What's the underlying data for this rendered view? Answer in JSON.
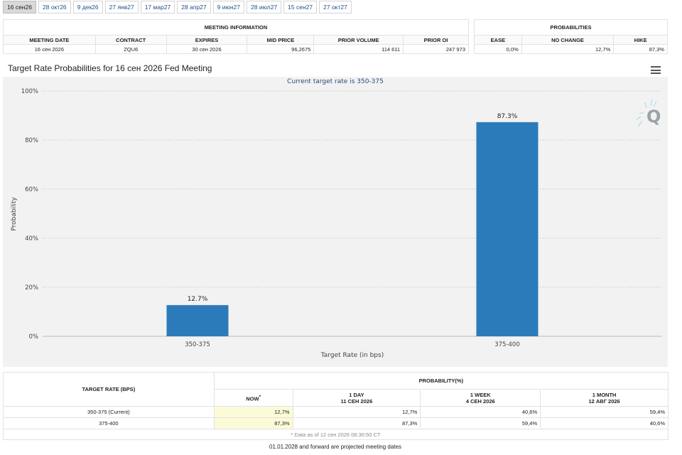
{
  "tabs": [
    {
      "label": "16 сен26",
      "active": true
    },
    {
      "label": "28 окт26",
      "active": false
    },
    {
      "label": "9 дек26",
      "active": false
    },
    {
      "label": "27 янв27",
      "active": false
    },
    {
      "label": "17 мар27",
      "active": false
    },
    {
      "label": "28 апр27",
      "active": false
    },
    {
      "label": "9 июн27",
      "active": false
    },
    {
      "label": "28 июл27",
      "active": false
    },
    {
      "label": "15 сен27",
      "active": false
    },
    {
      "label": "27 окт27",
      "active": false
    }
  ],
  "meeting_info": {
    "title": "MEETING INFORMATION",
    "headers": [
      "MEETING DATE",
      "CONTRACT",
      "EXPIRES",
      "MID PRICE",
      "PRIOR VOLUME",
      "PRIOR OI"
    ],
    "row": [
      "16 сен 2026",
      "ZQU6",
      "30 сен 2026",
      "96,2675",
      "114 611",
      "247 973"
    ]
  },
  "probabilities": {
    "title": "PROBABILITIES",
    "headers": [
      "EASE",
      "NO CHANGE",
      "HIKE"
    ],
    "row": [
      "0,0%",
      "12,7%",
      "87,3%"
    ]
  },
  "chart_title": "Target Rate Probabilities for 16 сен 2026 Fed Meeting",
  "chart_data": {
    "type": "bar",
    "title": "Current target rate is 350-375",
    "xlabel": "Target Rate (in bps)",
    "ylabel": "Probability",
    "categories": [
      "350-375",
      "375-400"
    ],
    "values": [
      12.7,
      87.3
    ],
    "value_labels": [
      "12.7%",
      "87.3%"
    ],
    "ylim": [
      0,
      100
    ],
    "yticks": [
      0,
      20,
      40,
      60,
      80,
      100
    ],
    "ytick_labels": [
      "0%",
      "20%",
      "40%",
      "60%",
      "80%",
      "100%"
    ],
    "grid": true,
    "bar_color": "#2b7bba",
    "legend": "none"
  },
  "prob_table": {
    "target_header": "TARGET RATE (BPS)",
    "prob_header": "PROBABILITY(%)",
    "columns": [
      {
        "line1": "NOW",
        "line2": ""
      },
      {
        "line1": "1 DAY",
        "line2": "11 СЕН 2026"
      },
      {
        "line1": "1 WEEK",
        "line2": "4 СЕН 2026"
      },
      {
        "line1": "1 MONTH",
        "line2": "12 АВГ 2026"
      }
    ],
    "now_marker": "*",
    "rows": [
      {
        "label": "350-375 (Current)",
        "values": [
          "12,7%",
          "12,7%",
          "40,6%",
          "59,4%"
        ]
      },
      {
        "label": "375-400",
        "values": [
          "87,3%",
          "87,3%",
          "59,4%",
          "40,6%"
        ]
      }
    ],
    "data_note": "* Data as of 12 сен 2026 06:30:50 CT"
  },
  "footer_note": "01.01.2028 and forward are projected meeting dates",
  "colors": {
    "accent_link": "#1f4e8c",
    "bar": "#2b7bba",
    "highlight": "#fbfbd8",
    "panel": "#f2f2f2"
  }
}
